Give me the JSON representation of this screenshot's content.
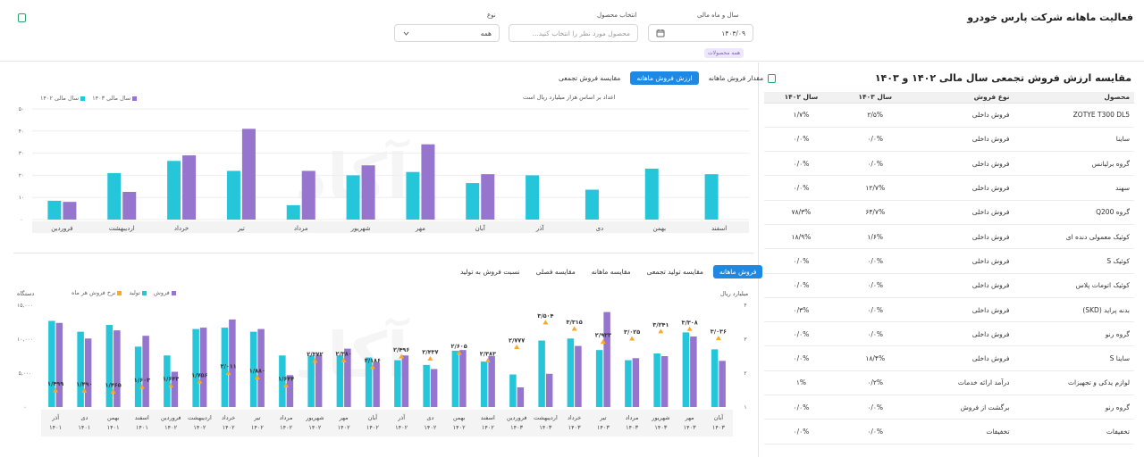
{
  "header": {
    "title": "فعالیت ماهانه شرکت پارس خودرو"
  },
  "filters": {
    "year_month": {
      "label": "سال و ماه مالی",
      "value": "۱۴۰۳/۰۹"
    },
    "product": {
      "label": "انتخاب محصول",
      "placeholder": "محصول مورد نظر را انتخاب کنید...",
      "tag": "همه محصولات"
    },
    "type": {
      "label": "نوع",
      "value": "همه"
    }
  },
  "comparison": {
    "title": "مقایسه ارزش فروش تجمعی سال مالی ۱۴۰۲ و ۱۴۰۳",
    "columns": [
      "محصول",
      "نوع فروش",
      "سال ۱۴۰۳",
      "سال ۱۴۰۲"
    ],
    "rows": [
      {
        "product": "ZOTYE T300 DL5",
        "type": "فروش داخلی",
        "y1403": "۲/۵%",
        "y1402": "۱/۷%"
      },
      {
        "product": "ساینا",
        "type": "فروش داخلی",
        "y1403": "۰/۰%",
        "y1402": "۰/۰%"
      },
      {
        "product": "گروه برلیانس",
        "type": "فروش داخلی",
        "y1403": "۰/۰%",
        "y1402": "۰/۰%"
      },
      {
        "product": "سهند",
        "type": "فروش داخلی",
        "y1403": "۱۲/۷%",
        "y1402": "۰/۰%"
      },
      {
        "product": "گروه Q200",
        "type": "فروش داخلی",
        "y1403": "۶۴/۷%",
        "y1402": "۷۸/۳%"
      },
      {
        "product": "کوئیک معمولی دنده ای",
        "type": "فروش داخلی",
        "y1403": "۱/۶%",
        "y1402": "۱۸/۹%"
      },
      {
        "product": "کوئیک S",
        "type": "فروش داخلی",
        "y1403": "۰/۰%",
        "y1402": "۰/۰%"
      },
      {
        "product": "کوئیک اتومات پلاس",
        "type": "فروش داخلی",
        "y1403": "۰/۰%",
        "y1402": "۰/۰%"
      },
      {
        "product": "بدنه پراید (SKD)",
        "type": "فروش داخلی",
        "y1403": "۰/۰%",
        "y1402": "۰/۳%"
      },
      {
        "product": "گروه رنو",
        "type": "فروش داخلی",
        "y1403": "۰/۰%",
        "y1402": "۰/۰%"
      },
      {
        "product": "ساینا S",
        "type": "فروش داخلی",
        "y1403": "۱۸/۴%",
        "y1402": "۰/۰%"
      },
      {
        "product": "لوازم یدکی و تجهیزات",
        "type": "درآمد ارائه خدمات",
        "y1403": "۰/۲%",
        "y1402": "۱%"
      },
      {
        "product": "گروه رنو",
        "type": "برگشت از فروش",
        "y1403": "۰/۰%",
        "y1402": "۰/۰%"
      },
      {
        "product": "تخفیفات",
        "type": "تخفیفات",
        "y1403": "۰/۰%",
        "y1402": "۰/۰%"
      }
    ]
  },
  "top_tabs": [
    "مقدار فروش ماهانه",
    "ارزش فروش ماهانه",
    "مقایسه فروش تجمعی"
  ],
  "top_tab_active": 1,
  "bottom_tabs": [
    "فروش ماهانه",
    "مقایسه تولید تجمعی",
    "مقایسه ماهانه",
    "مقایسه فصلی",
    "نسبت فروش به تولید"
  ],
  "bottom_tab_active": 0,
  "chart_data": [
    {
      "type": "bar",
      "note": "اعداد بر اساس هزار میلیارد ریال است",
      "categories": [
        "اسفند",
        "بهمن",
        "دی",
        "آذر",
        "آبان",
        "مهر",
        "شهریور",
        "مرداد",
        "تیر",
        "خرداد",
        "اردیبهشت",
        "فروردین"
      ],
      "series": [
        {
          "name": "سال مالی ۱۴۰۲",
          "color": "#26c6da",
          "values": [
            20.5,
            23,
            13.5,
            20,
            16.5,
            21.5,
            20,
            6.5,
            22,
            26.5,
            21,
            8.5
          ]
        },
        {
          "name": "سال مالی ۱۴۰۳",
          "color": "#9575cd",
          "values": [
            null,
            null,
            null,
            null,
            20.5,
            34,
            24.5,
            22,
            41,
            29,
            12.5,
            8
          ]
        }
      ],
      "ylim": [
        0,
        50
      ],
      "yticks": [
        "۰",
        "۱۰",
        "۲۰",
        "۳۰",
        "۴۰",
        "۵۰"
      ]
    },
    {
      "type": "bar",
      "left_axis_label": "دستگاه",
      "right_axis_label": "میلیارد ریال",
      "categories": [
        "آذر ۱۴۰۱",
        "دی ۱۴۰۱",
        "بهمن ۱۴۰۱",
        "اسفند ۱۴۰۱",
        "فروردین ۱۴۰۲",
        "اردیبهشت ۱۴۰۲",
        "خرداد ۱۴۰۲",
        "تیر ۱۴۰۲",
        "مرداد ۱۴۰۲",
        "شهریور ۱۴۰۲",
        "مهر ۱۴۰۲",
        "آبان ۱۴۰۲",
        "آذر ۱۴۰۲",
        "دی ۱۴۰۲",
        "بهمن ۱۴۰۲",
        "اسفند ۱۴۰۲",
        "فروردین ۱۴۰۳",
        "اردیبهشت ۱۴۰۳",
        "خرداد ۱۴۰۳",
        "تیر ۱۴۰۳",
        "مرداد ۱۴۰۳",
        "شهریور ۱۴۰۳",
        "مهر ۱۴۰۳",
        "آبان ۱۴۰۳"
      ],
      "series": [
        {
          "name": "فروش",
          "color": "#9575cd",
          "values": [
            12400,
            10100,
            11300,
            10500,
            5200,
            11700,
            12900,
            11500,
            4700,
            7700,
            8600,
            6600,
            7600,
            5600,
            8400,
            7500,
            2900,
            4900,
            9000,
            14000,
            7200,
            7500,
            10400,
            6800
          ]
        },
        {
          "name": "تولید",
          "color": "#26c6da",
          "values": [
            12700,
            11100,
            12100,
            8900,
            7600,
            11500,
            11700,
            11100,
            7600,
            7600,
            7600,
            7300,
            6900,
            6200,
            8300,
            6700,
            4800,
            9800,
            10100,
            8400,
            6900,
            7900,
            11000,
            8500
          ]
        },
        {
          "name": "نرخ فروش هر ماه",
          "color": "#ffa726",
          "values": [
            1.499,
            1.49,
            1.465,
            1.603,
            1.643,
            1.756,
            2.011,
            1.88,
            1.644,
            2.372,
            2.38,
            2.186,
            2.496,
            2.437,
            2.605,
            2.383,
            2.777,
            3.504,
            3.315,
            2.933,
            3.025,
            3.241,
            3.308,
            3.036
          ]
        }
      ],
      "value_labels": [
        "۱/۴۹۹",
        "۱/۴۹۰",
        "۱/۴۶۵",
        "۱/۶۰۳",
        "۱/۶۴۳",
        "۱/۷۵۶",
        "۲/۰۱۱",
        "۱/۸۸۰",
        "۱/۶۴۴",
        "۲/۳۷۲",
        "۲/۳۸۰",
        "۲/۱۸۶",
        "۲/۴۹۶",
        "۲/۴۳۷",
        "۲/۶۰۵",
        "۲/۳۸۳",
        "۲/۷۷۷",
        "۳/۵۰۴",
        "۳/۳۱۵",
        "۲/۹۳۳",
        "۳/۰۲۵",
        "۳/۲۴۱",
        "۳/۳۰۸",
        "۳/۰۳۶"
      ],
      "left_ylim": [
        0,
        15000
      ],
      "left_yticks": [
        "۰",
        "۵,۰۰۰",
        "۱۰,۰۰۰",
        "۱۵,۰۰۰"
      ],
      "right_ylim": [
        1,
        4
      ],
      "right_yticks": [
        "۱",
        "۲",
        "۳",
        "۴"
      ]
    }
  ]
}
